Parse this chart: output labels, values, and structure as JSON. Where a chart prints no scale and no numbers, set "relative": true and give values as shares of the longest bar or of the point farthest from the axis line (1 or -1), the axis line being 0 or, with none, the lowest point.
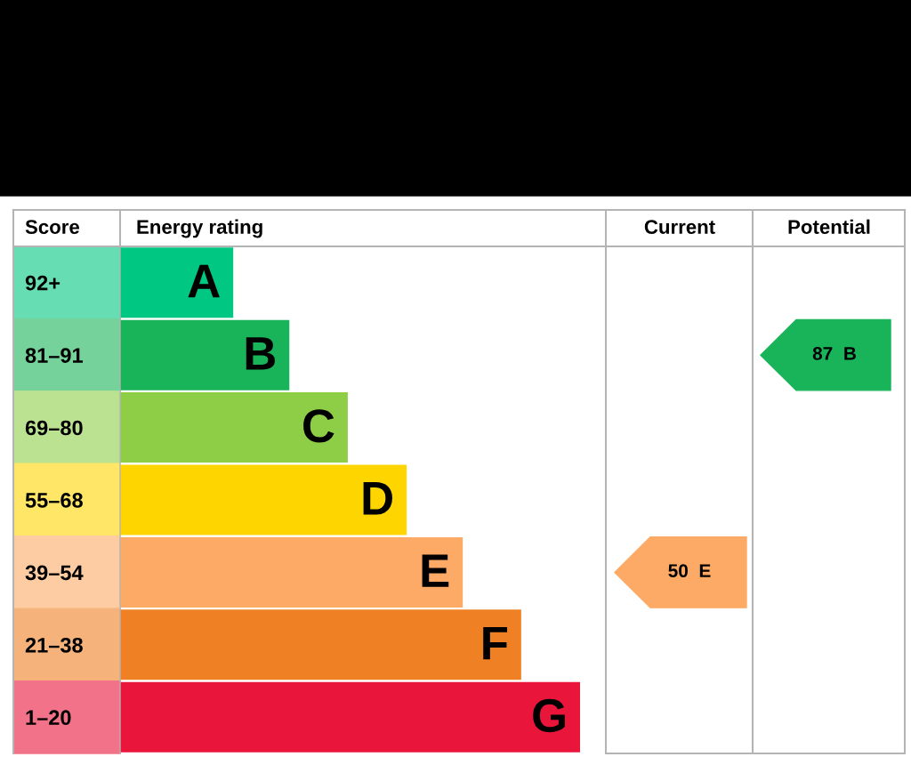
{
  "chart_data": {
    "type": "bar",
    "orientation": "horizontal",
    "relative": true,
    "tick_labels": "y",
    "categories": [
      "92+",
      "81–91",
      "69–80",
      "55–68",
      "39–54",
      "21–38",
      "1–20"
    ],
    "values": [
      0.246,
      0.368,
      0.495,
      0.623,
      0.745,
      0.872,
      1
    ],
    "colors": [
      "#00c781",
      "#19b459",
      "#8dce46",
      "#ffd500",
      "#fcaa65",
      "#ef8023",
      "#e9153b"
    ],
    "annotations": [
      "Score",
      "Energy rating",
      "Current",
      "Potential",
      "50  E",
      "87  B",
      {
        "text": "A",
        "x": 0.246,
        "y": "92+"
      },
      {
        "text": "B",
        "x": 0.368,
        "y": "81–91"
      },
      {
        "text": "C",
        "x": 0.495,
        "y": "69–80"
      },
      {
        "text": "D",
        "x": 0.623,
        "y": "55–68"
      },
      {
        "text": "E",
        "x": 0.745,
        "y": "39–54"
      },
      {
        "text": "F",
        "x": 0.872,
        "y": "21–38"
      },
      {
        "text": "G",
        "x": 1,
        "y": "1–20"
      }
    ]
  }
}
